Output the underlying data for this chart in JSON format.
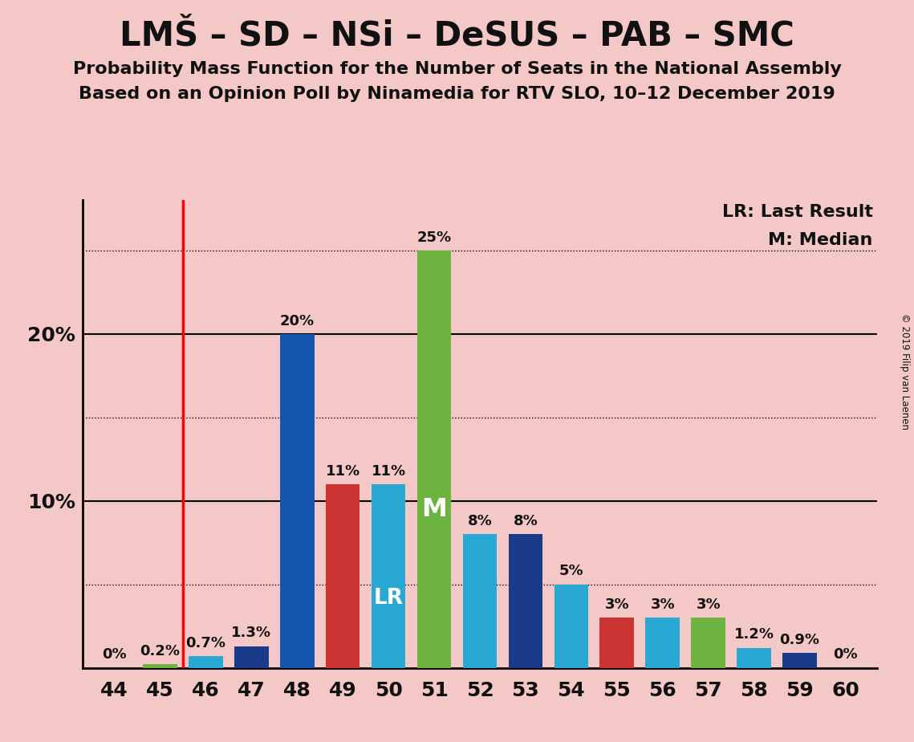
{
  "seats": [
    44,
    45,
    46,
    47,
    48,
    49,
    50,
    51,
    52,
    53,
    54,
    55,
    56,
    57,
    58,
    59,
    60
  ],
  "probs": [
    0.0,
    0.2,
    0.7,
    1.3,
    20.0,
    11.0,
    11.0,
    25.0,
    8.0,
    8.0,
    5.0,
    3.0,
    3.0,
    3.0,
    1.2,
    0.9,
    0.0
  ],
  "colors": [
    "#1a3a8a",
    "#6db33f",
    "#29a8d4",
    "#1a3a8a",
    "#1557b0",
    "#cc3333",
    "#29a8d4",
    "#6db33f",
    "#29a8d4",
    "#1a3a8a",
    "#29a8d4",
    "#cc3333",
    "#29a8d4",
    "#6db33f",
    "#29a8d4",
    "#1a3a8a",
    "#1a3a8a"
  ],
  "lr_seat": 50,
  "median_seat": 51,
  "vline_x": 45.5,
  "title1": "LMŠ – SD – NSi – DeSUS – PAB – SMC",
  "subtitle1": "Probability Mass Function for the Number of Seats in the National Assembly",
  "subtitle2": "Based on an Opinion Poll by Ninamedia for RTV SLO, 10–12 December 2019",
  "legend_lr": "LR: Last Result",
  "legend_m": "M: Median",
  "copyright": "© 2019 Filip van Laenen",
  "bg_color": "#f5c8c8",
  "ylim": [
    0,
    28
  ],
  "bar_width": 0.75,
  "label_map": {
    "0.0": "0%",
    "0.2": "0.2%",
    "0.7": "0.7%",
    "1.3": "1.3%",
    "20.0": "20%",
    "11.0": "11%",
    "25.0": "25%",
    "8.0": "8%",
    "5.0": "5%",
    "3.0": "3%",
    "1.2": "1.2%",
    "0.9": "0.9%"
  },
  "solid_lines": [
    10,
    20
  ],
  "dotted_lines": [
    5,
    15,
    25
  ],
  "ytick_positions": [
    10,
    20
  ],
  "ytick_labels": [
    "10%",
    "20%"
  ],
  "title_fontsize": 30,
  "subtitle_fontsize": 16,
  "tick_fontsize": 18,
  "bar_label_fontsize": 13,
  "legend_fontsize": 16,
  "lr_fontsize": 19,
  "m_fontsize": 23
}
